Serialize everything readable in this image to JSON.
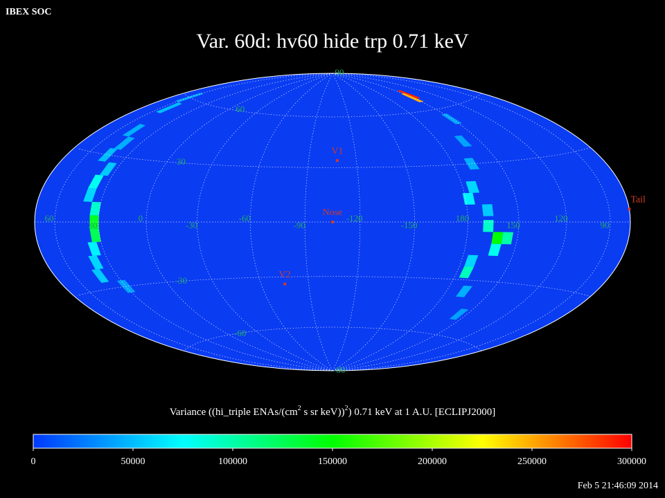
{
  "chart_data": {
    "type": "skymap",
    "header": "IBEX SOC",
    "title": "Var. 60d: hv60 hide trp 0.71 keV",
    "timestamp": "Feb  5 21:46:09 2014",
    "center_lon": 255,
    "lon_ticks": [
      60,
      30,
      0,
      -30,
      -60,
      -90,
      -120,
      -150,
      180,
      150,
      120,
      90
    ],
    "lat_ticks": [
      90,
      60,
      30,
      -30,
      -60,
      -90
    ],
    "points": [
      {
        "label": "V1",
        "lon": 252,
        "lat": 34
      },
      {
        "label": "Nose",
        "lon": 255,
        "lat": 0
      },
      {
        "label": "V2",
        "lon": 285,
        "lat": -34
      },
      {
        "label": "Tail",
        "lon": 75,
        "lat": 5
      }
    ],
    "lon": [
      33,
      33,
      33,
      39,
      39,
      36,
      39,
      42,
      45,
      48,
      54,
      60,
      30,
      36,
      42,
      162,
      156,
      168,
      162,
      174,
      178,
      174,
      168,
      174,
      168,
      162,
      168,
      156,
      150,
      145,
      150
    ],
    "lat": [
      0,
      -6,
      6,
      18,
      12,
      -12,
      -18,
      -24,
      30,
      42,
      54,
      60,
      -30,
      24,
      36,
      -8,
      -8,
      -2,
      -14,
      -26,
      12,
      18,
      6,
      -20,
      30,
      42,
      -36,
      -48,
      54,
      70,
      68
    ],
    "values": [
      140000,
      125000,
      90000,
      80000,
      60000,
      70000,
      60000,
      55000,
      50000,
      45000,
      50000,
      40000,
      40000,
      55000,
      45000,
      150000,
      100000,
      90000,
      80000,
      95000,
      70000,
      60000,
      55000,
      60000,
      45000,
      40000,
      45000,
      40000,
      40000,
      290000,
      250000
    ],
    "colorbar_label": [
      "Variance ((hi_triple ENAs/(cm",
      "2",
      " s sr keV))",
      "2",
      ") 0.71 keV at 1 A.U. [ECLIPJ2000]"
    ],
    "clim": [
      0,
      300000
    ],
    "cticks": [
      0,
      50000,
      100000,
      150000,
      200000,
      250000,
      300000
    ],
    "colormap": [
      "#0038ff",
      "#00ffff",
      "#00ff00",
      "#ffff00",
      "#ff0000"
    ]
  }
}
